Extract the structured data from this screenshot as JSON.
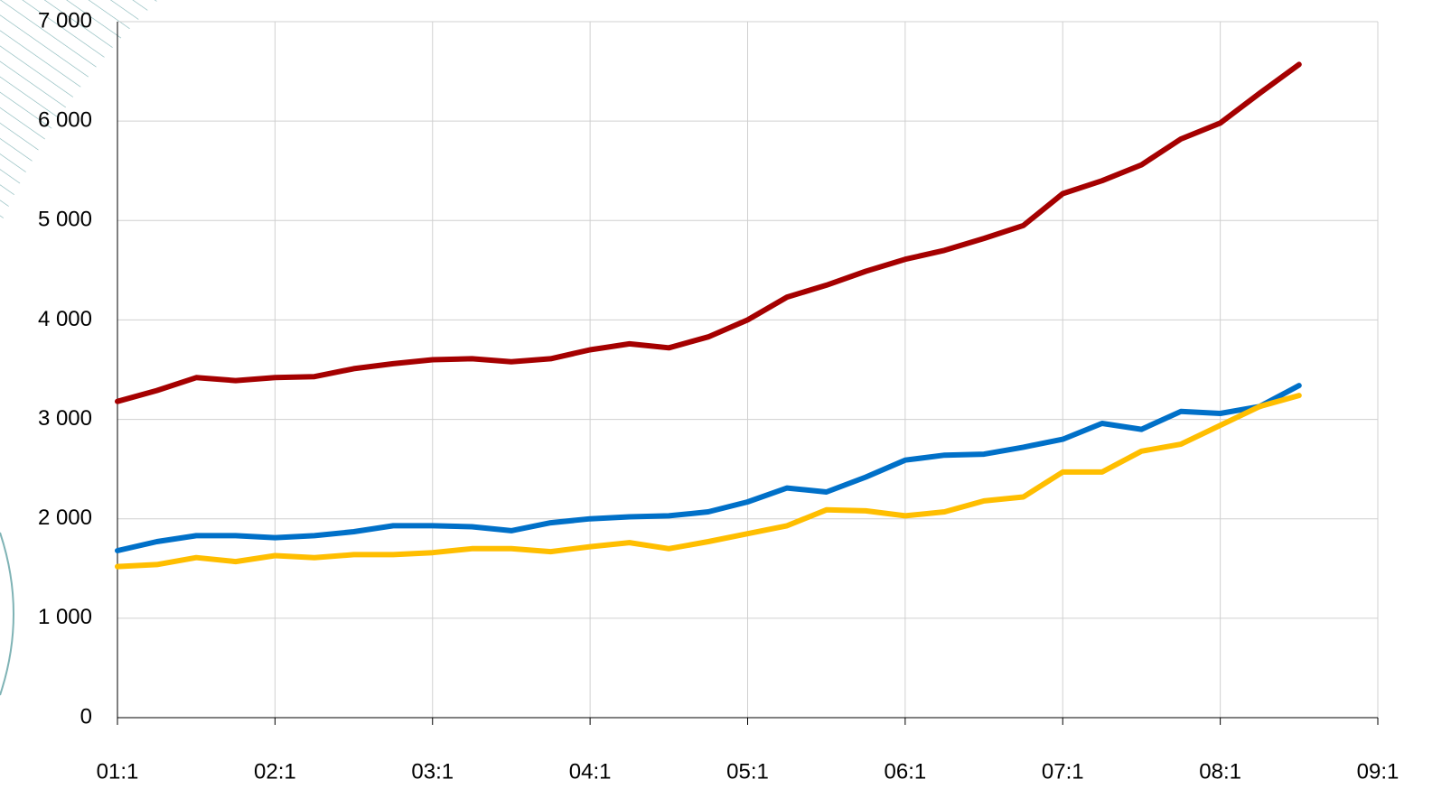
{
  "chart_data": {
    "type": "line",
    "categories": [
      "01:1",
      null,
      null,
      null,
      "02:1",
      null,
      null,
      null,
      "03:1",
      null,
      null,
      null,
      "04:1",
      null,
      null,
      null,
      "05:1",
      null,
      null,
      null,
      "06:1",
      null,
      null,
      null,
      "07:1",
      null,
      null,
      null,
      "08:1",
      null,
      null,
      null,
      "09:1"
    ],
    "series": [
      {
        "color": "#a50000",
        "values": [
          3180,
          3290,
          3420,
          3390,
          3420,
          3430,
          3510,
          3560,
          3600,
          3610,
          3580,
          3610,
          3700,
          3760,
          3720,
          3830,
          4000,
          4230,
          4350,
          4490,
          4610,
          4700,
          4820,
          4950,
          5270,
          5400,
          5560,
          5820,
          5980,
          6280,
          6570,
          null,
          null
        ]
      },
      {
        "color": "#0070c8",
        "values": [
          1680,
          1770,
          1830,
          1830,
          1810,
          1830,
          1870,
          1930,
          1930,
          1920,
          1880,
          1960,
          2000,
          2020,
          2030,
          2070,
          2170,
          2310,
          2270,
          2420,
          2590,
          2640,
          2650,
          2720,
          2800,
          2960,
          2900,
          3080,
          3060,
          3130,
          3340,
          null,
          null
        ]
      },
      {
        "color": "#ffbe00",
        "values": [
          1520,
          1540,
          1610,
          1570,
          1630,
          1610,
          1640,
          1640,
          1660,
          1700,
          1700,
          1670,
          1720,
          1760,
          1700,
          1770,
          1850,
          1930,
          2090,
          2080,
          2030,
          2070,
          2180,
          2220,
          2470,
          2470,
          2680,
          2750,
          2940,
          3130,
          3240,
          null,
          null
        ]
      }
    ],
    "ylim": [
      0,
      7000
    ],
    "yticks": [
      0,
      {
        "value": 1000,
        "label": "1 000"
      },
      {
        "value": 2000,
        "label": "2 000"
      },
      {
        "value": 3000,
        "label": "3 000"
      },
      {
        "value": 4000,
        "label": "4 000"
      },
      {
        "value": 5000,
        "label": "5 000"
      },
      {
        "value": 6000,
        "label": "6 000"
      },
      {
        "value": 7000,
        "label": "7 000"
      }
    ],
    "grid": true
  }
}
